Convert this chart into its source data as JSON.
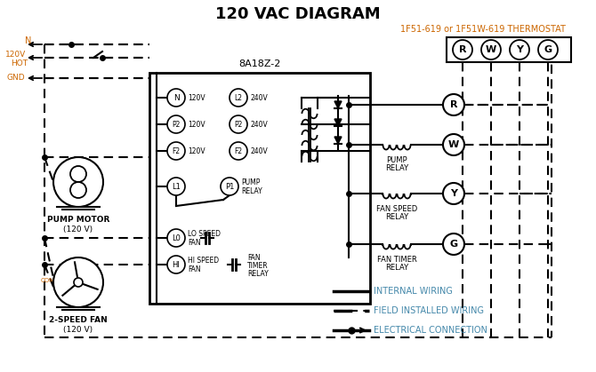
{
  "title": "120 VAC DIAGRAM",
  "title_color": "#000000",
  "title_fontsize": 13,
  "bg_color": "#ffffff",
  "line_color": "#000000",
  "orange_color": "#cc6600",
  "blue_color": "#4488aa",
  "thermostat_label": "1F51-619 or 1F51W-619 THERMOSTAT",
  "control_box_label": "8A18Z-2",
  "terminals": [
    "R",
    "W",
    "Y",
    "G"
  ],
  "figsize": [
    6.7,
    4.19
  ],
  "dpi": 100
}
